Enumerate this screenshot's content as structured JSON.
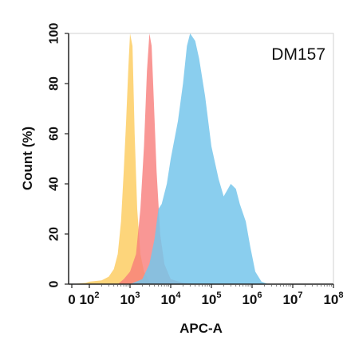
{
  "chart_data": {
    "type": "area",
    "title": "",
    "annotation": "DM157",
    "xlabel": "APC-A",
    "ylabel": "Count (%)",
    "x_scale": "biexponential",
    "xlim": [
      0,
      100000000
    ],
    "ylim": [
      0,
      100
    ],
    "yticks": [
      0,
      20,
      40,
      60,
      80,
      100
    ],
    "xticks": [
      {
        "base": "0",
        "exp": "",
        "value": 0
      },
      {
        "base": "10",
        "exp": "2",
        "value": 100
      },
      {
        "base": "10",
        "exp": "3",
        "value": 1000
      },
      {
        "base": "10",
        "exp": "4",
        "value": 10000
      },
      {
        "base": "10",
        "exp": "5",
        "value": 100000
      },
      {
        "base": "10",
        "exp": "6",
        "value": 1000000
      },
      {
        "base": "10",
        "exp": "7",
        "value": 10000000
      },
      {
        "base": "10",
        "exp": "8",
        "value": 100000000
      }
    ],
    "grid": false,
    "legend": "none",
    "series": [
      {
        "color": "#FDCB5A",
        "points": [
          [
            1,
            0
          ],
          [
            80,
            0.5
          ],
          [
            100,
            1
          ],
          [
            200,
            1.5
          ],
          [
            300,
            3
          ],
          [
            400,
            6
          ],
          [
            500,
            12
          ],
          [
            600,
            25
          ],
          [
            700,
            45
          ],
          [
            800,
            65
          ],
          [
            900,
            85
          ],
          [
            1000,
            100
          ],
          [
            1150,
            95
          ],
          [
            1300,
            60
          ],
          [
            1500,
            30
          ],
          [
            1800,
            12
          ],
          [
            2200,
            5
          ],
          [
            3000,
            1
          ],
          [
            5000,
            0
          ]
        ]
      },
      {
        "color": "#F87D7A",
        "points": [
          [
            500,
            0
          ],
          [
            700,
            2
          ],
          [
            1000,
            5
          ],
          [
            1400,
            12
          ],
          [
            1800,
            30
          ],
          [
            2200,
            55
          ],
          [
            2600,
            85
          ],
          [
            3000,
            100
          ],
          [
            3400,
            95
          ],
          [
            3800,
            75
          ],
          [
            4500,
            45
          ],
          [
            5500,
            20
          ],
          [
            7000,
            8
          ],
          [
            10000,
            2
          ],
          [
            20000,
            0.5
          ],
          [
            40000,
            0
          ]
        ]
      },
      {
        "color": "#75C6EB",
        "points": [
          [
            1000,
            0
          ],
          [
            2000,
            2
          ],
          [
            3000,
            8
          ],
          [
            4000,
            18
          ],
          [
            5000,
            30
          ],
          [
            6000,
            32
          ],
          [
            8000,
            40
          ],
          [
            10000,
            50
          ],
          [
            15000,
            65
          ],
          [
            20000,
            80
          ],
          [
            25000,
            95
          ],
          [
            30000,
            100
          ],
          [
            40000,
            97
          ],
          [
            50000,
            90
          ],
          [
            70000,
            75
          ],
          [
            100000,
            55
          ],
          [
            150000,
            42
          ],
          [
            200000,
            35
          ],
          [
            300000,
            40
          ],
          [
            400000,
            38
          ],
          [
            500000,
            32
          ],
          [
            700000,
            25
          ],
          [
            900000,
            15
          ],
          [
            1200000,
            5
          ],
          [
            1700000,
            1
          ],
          [
            2500000,
            0
          ]
        ]
      }
    ]
  }
}
